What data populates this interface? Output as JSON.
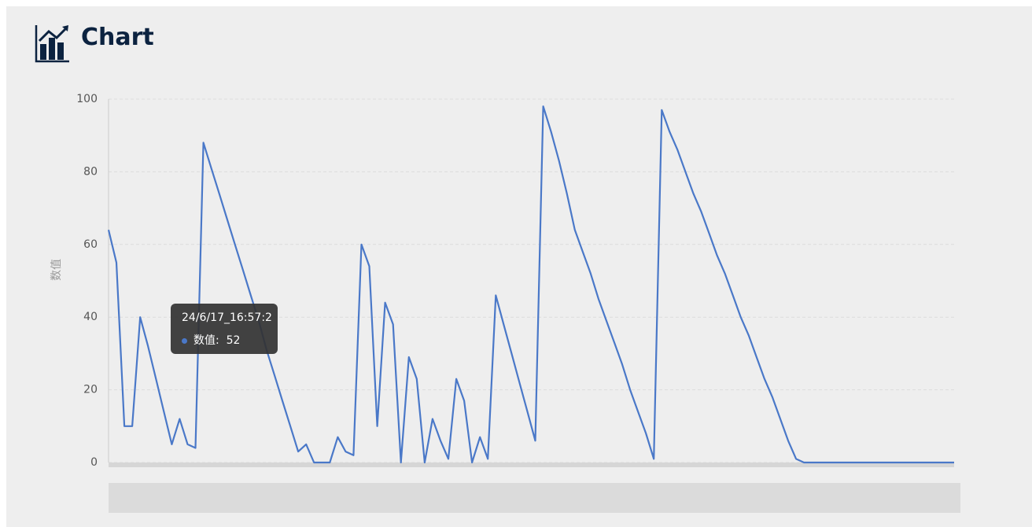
{
  "header": {
    "title": "Chart"
  },
  "chart_data": {
    "type": "line",
    "y_label": "数值",
    "categories": [
      null,
      null,
      null,
      null,
      null,
      null,
      null,
      null,
      null,
      null,
      null,
      null,
      null,
      null,
      null,
      null,
      null,
      null,
      null,
      null,
      null,
      null,
      null,
      null,
      null,
      null,
      null,
      null,
      null,
      null,
      null,
      null,
      null,
      null,
      null,
      null,
      null,
      null,
      null,
      null,
      null,
      null,
      null,
      null,
      null,
      null,
      null,
      null,
      null,
      null,
      null,
      null,
      null,
      null,
      null,
      null,
      null,
      null,
      null,
      null,
      null,
      null,
      null,
      null,
      null,
      null,
      null,
      null,
      null,
      null,
      null,
      null,
      null,
      null,
      null,
      null,
      null,
      null,
      null,
      null,
      null,
      null,
      null,
      null,
      null,
      null,
      null,
      null,
      null,
      null,
      null,
      null,
      null,
      null,
      null,
      null,
      null,
      null,
      null,
      null,
      null,
      null,
      null,
      null,
      null,
      null,
      null,
      null
    ],
    "series": [
      {
        "name": "数值",
        "color": "#4a78c8",
        "values": [
          64,
          55,
          10,
          10,
          40,
          32,
          23,
          14,
          5,
          12,
          5,
          4,
          88,
          81,
          74,
          67,
          60,
          53,
          46,
          39,
          31,
          24,
          17,
          10,
          3,
          5,
          0,
          0,
          0,
          7,
          3,
          2,
          60,
          54,
          10,
          44,
          38,
          0,
          29,
          23,
          0,
          12,
          6,
          1,
          23,
          17,
          0,
          7,
          1,
          46,
          38,
          30,
          22,
          14,
          6,
          98,
          91,
          83,
          74,
          64,
          58,
          52,
          45,
          39,
          33,
          27,
          20,
          14,
          8,
          1,
          97,
          91,
          86,
          80,
          74,
          69,
          63,
          57,
          52,
          46,
          40,
          35,
          29,
          23,
          18,
          12,
          6,
          1,
          0,
          0,
          0,
          0,
          0,
          0,
          0,
          0,
          0,
          0,
          0,
          0,
          0,
          0,
          0,
          0,
          0,
          0,
          0,
          0
        ]
      }
    ],
    "ylim": [
      0,
      100
    ],
    "yticks": [
      0,
      20,
      40,
      60,
      80,
      100
    ],
    "grid": true,
    "tooltip": {
      "title": "24/6/17_16:57:2",
      "label": "数值:",
      "value": 52
    }
  }
}
